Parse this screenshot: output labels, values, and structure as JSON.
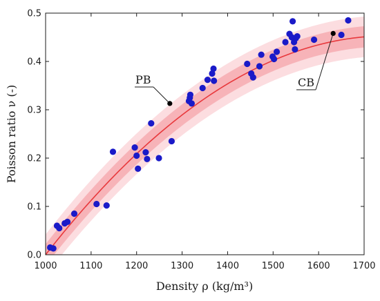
{
  "chart_data": {
    "type": "scatter",
    "title": "",
    "xlabel": "Density ρ (kg/m³)",
    "ylabel": "Poisson ratio ν (-)",
    "xlim": [
      1000,
      1700
    ],
    "ylim": [
      0,
      0.5
    ],
    "xticks": [
      1000,
      1100,
      1200,
      1300,
      1400,
      1500,
      1600,
      1700
    ],
    "yticks": [
      0.0,
      0.1,
      0.2,
      0.3,
      0.4,
      0.5
    ],
    "xtick_labels": [
      "1000",
      "1100",
      "1200",
      "1300",
      "1400",
      "1500",
      "1600",
      "1700"
    ],
    "ytick_labels": [
      "0.0",
      "0.1",
      "0.2",
      "0.3",
      "0.4",
      "0.5"
    ],
    "grid": false,
    "colors": {
      "points": "#1a1ac8",
      "fit_line": "#e8383c",
      "band_inner": "#f7b3b8",
      "band_outer": "#fcdde0",
      "annotation_points": "#000000"
    },
    "series": [
      {
        "type": "scatter",
        "points": [
          {
            "x": 1010,
            "y": 0.015
          },
          {
            "x": 1017,
            "y": 0.013
          },
          {
            "x": 1025,
            "y": 0.06
          },
          {
            "x": 1030,
            "y": 0.055
          },
          {
            "x": 1042,
            "y": 0.065
          },
          {
            "x": 1048,
            "y": 0.068
          },
          {
            "x": 1063,
            "y": 0.085
          },
          {
            "x": 1112,
            "y": 0.105
          },
          {
            "x": 1134,
            "y": 0.102
          },
          {
            "x": 1148,
            "y": 0.213
          },
          {
            "x": 1196,
            "y": 0.222
          },
          {
            "x": 1200,
            "y": 0.205
          },
          {
            "x": 1203,
            "y": 0.178
          },
          {
            "x": 1220,
            "y": 0.212
          },
          {
            "x": 1223,
            "y": 0.198
          },
          {
            "x": 1232,
            "y": 0.272
          },
          {
            "x": 1249,
            "y": 0.2
          },
          {
            "x": 1277,
            "y": 0.235
          },
          {
            "x": 1315,
            "y": 0.318
          },
          {
            "x": 1317,
            "y": 0.325
          },
          {
            "x": 1318,
            "y": 0.331
          },
          {
            "x": 1321,
            "y": 0.313
          },
          {
            "x": 1345,
            "y": 0.345
          },
          {
            "x": 1356,
            "y": 0.362
          },
          {
            "x": 1366,
            "y": 0.375
          },
          {
            "x": 1369,
            "y": 0.385
          },
          {
            "x": 1370,
            "y": 0.36
          },
          {
            "x": 1443,
            "y": 0.395
          },
          {
            "x": 1452,
            "y": 0.375
          },
          {
            "x": 1456,
            "y": 0.367
          },
          {
            "x": 1470,
            "y": 0.39
          },
          {
            "x": 1474,
            "y": 0.414
          },
          {
            "x": 1499,
            "y": 0.41
          },
          {
            "x": 1502,
            "y": 0.405
          },
          {
            "x": 1508,
            "y": 0.42
          },
          {
            "x": 1527,
            "y": 0.44
          },
          {
            "x": 1536,
            "y": 0.457
          },
          {
            "x": 1541,
            "y": 0.45
          },
          {
            "x": 1543,
            "y": 0.483
          },
          {
            "x": 1546,
            "y": 0.44
          },
          {
            "x": 1548,
            "y": 0.425
          },
          {
            "x": 1550,
            "y": 0.448
          },
          {
            "x": 1553,
            "y": 0.452
          },
          {
            "x": 1590,
            "y": 0.445
          },
          {
            "x": 1650,
            "y": 0.455
          },
          {
            "x": 1665,
            "y": 0.485
          }
        ]
      },
      {
        "type": "line",
        "fit": {
          "form": "quadratic",
          "xmin": 1000,
          "xmax": 1700,
          "x0": 1000,
          "a": 0.0,
          "b": 0.0012041,
          "c": -8e-07
        }
      },
      {
        "type": "band",
        "inner_halfwidth": 0.022,
        "outer_halfwidth": 0.042
      }
    ],
    "annotations": [
      {
        "label": "PB",
        "point": {
          "x": 1273,
          "y": 0.313
        }
      },
      {
        "label": "CB",
        "point": {
          "x": 1632,
          "y": 0.458
        }
      }
    ]
  }
}
